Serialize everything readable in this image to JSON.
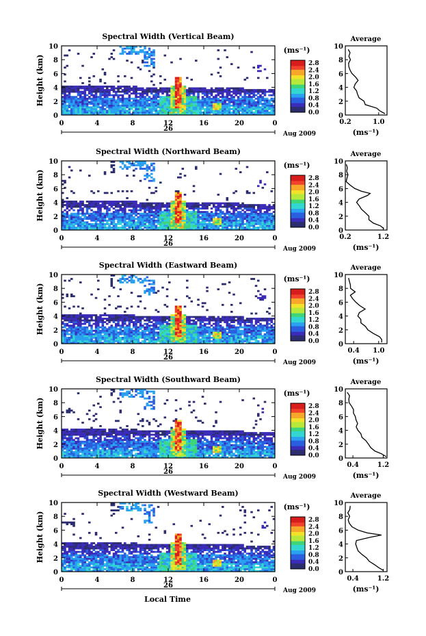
{
  "common": {
    "ylabel": "Height (km)",
    "ylim": [
      0,
      10
    ],
    "yticks": [
      "0",
      "2",
      "4",
      "6",
      "8",
      "10"
    ],
    "xlim": [
      0,
      24
    ],
    "xticks": [
      "0",
      "4",
      "8",
      "12",
      "16",
      "20",
      "0"
    ],
    "day_label": "26",
    "month_label": "Aug 2009",
    "xlabel": "Local Time",
    "colorbar_unit": "(ms⁻¹)",
    "colorbar_ticks": [
      "2.8",
      "2.4",
      "2.0",
      "1.6",
      "1.2",
      "0.8",
      "0.4",
      "0.0"
    ],
    "colorbar_range": [
      0,
      2.8
    ],
    "colors": [
      "#2b2d6e",
      "#3a2bb8",
      "#2a5fe0",
      "#2aa0f0",
      "#33d6d0",
      "#3fd57a",
      "#b7e83a",
      "#f4e22a",
      "#f7a72a",
      "#f0432a",
      "#d81d1d"
    ],
    "avg_title": "Average",
    "avg_unit": "(ms⁻¹)"
  },
  "chart_data": [
    {
      "type": "heatmap",
      "title": "Spectral Width (Vertical Beam)",
      "avg_xticks": [
        "0.2",
        "1.0"
      ],
      "avg_xlim": [
        0.2,
        1.2
      ],
      "avg_profile": {
        "height": [
          0.2,
          0.6,
          1.0,
          1.5,
          2.0,
          2.5,
          3.0,
          3.5,
          4.0,
          4.5,
          5.0,
          5.5,
          6.0,
          6.5,
          7.0,
          7.5,
          8.0,
          8.5,
          9.0,
          9.5
        ],
        "value": [
          1.15,
          1.05,
          0.95,
          0.7,
          0.62,
          0.55,
          0.5,
          0.45,
          0.4,
          0.43,
          0.5,
          0.42,
          0.38,
          0.33,
          0.3,
          0.28,
          0.3,
          0.26,
          0.3,
          0.27
        ]
      }
    },
    {
      "type": "heatmap",
      "title": "Spectral Width (Northward Beam)",
      "avg_xticks": [
        "0.2",
        "1.2"
      ],
      "avg_xlim": [
        0.2,
        1.3
      ],
      "avg_profile": {
        "height": [
          0.2,
          0.6,
          1.0,
          1.5,
          2.0,
          2.5,
          3.0,
          3.5,
          4.0,
          4.5,
          5.0,
          5.3,
          5.6,
          6.0,
          6.5,
          7.0,
          7.5,
          8.0,
          8.5,
          9.0,
          9.5
        ],
        "value": [
          1.2,
          1.1,
          0.95,
          0.85,
          0.8,
          0.7,
          0.62,
          0.55,
          0.5,
          0.55,
          0.8,
          0.85,
          0.6,
          0.45,
          0.3,
          0.25,
          0.22,
          0.25,
          0.23,
          0.26,
          0.24
        ]
      }
    },
    {
      "type": "heatmap",
      "title": "Spectral Width (Eastward Beam)",
      "avg_xticks": [
        "0.4",
        "1.0"
      ],
      "avg_xlim": [
        0.2,
        1.2
      ],
      "avg_profile": {
        "height": [
          0.2,
          0.6,
          1.0,
          1.5,
          2.0,
          2.5,
          3.0,
          3.5,
          4.0,
          4.5,
          5.0,
          5.5,
          6.0,
          6.5,
          7.0,
          7.5,
          8.0,
          8.5,
          9.0,
          9.5
        ],
        "value": [
          1.1,
          1.05,
          1.0,
          0.85,
          0.75,
          0.68,
          0.6,
          0.55,
          0.5,
          0.55,
          0.7,
          0.55,
          0.45,
          0.4,
          0.35,
          0.42,
          0.3,
          0.33,
          0.28,
          0.3
        ]
      }
    },
    {
      "type": "heatmap",
      "title": "Spectral Width (Southward Beam)",
      "avg_xticks": [
        "0.4",
        "1.2"
      ],
      "avg_xlim": [
        0.2,
        1.3
      ],
      "avg_profile": {
        "height": [
          0.2,
          0.6,
          1.0,
          1.5,
          2.0,
          2.5,
          3.0,
          3.5,
          4.0,
          4.5,
          5.0,
          5.5,
          6.0,
          6.5,
          7.0,
          7.5,
          8.0,
          8.5,
          9.0,
          9.5
        ],
        "value": [
          1.25,
          1.15,
          1.0,
          0.9,
          0.8,
          0.72,
          0.65,
          0.6,
          0.55,
          0.5,
          0.5,
          0.47,
          0.45,
          0.42,
          0.4,
          0.35,
          0.3,
          0.27,
          0.3,
          0.25
        ]
      }
    },
    {
      "type": "heatmap",
      "title": "Spectral Width (Westward Beam)",
      "avg_xticks": [
        "0.4",
        "1.2"
      ],
      "avg_xlim": [
        0.2,
        1.3
      ],
      "avg_profile": {
        "height": [
          0.2,
          0.6,
          1.0,
          1.5,
          2.0,
          2.5,
          3.0,
          3.5,
          4.0,
          4.5,
          5.0,
          5.3,
          5.6,
          6.0,
          6.5,
          7.0,
          7.5,
          8.0,
          8.5,
          9.0,
          9.5
        ],
        "value": [
          1.2,
          1.05,
          0.95,
          0.85,
          0.75,
          0.65,
          0.55,
          0.5,
          0.45,
          0.5,
          0.9,
          1.15,
          0.75,
          0.55,
          0.4,
          0.3,
          0.27,
          0.3,
          0.28,
          0.32,
          0.3
        ]
      }
    }
  ]
}
